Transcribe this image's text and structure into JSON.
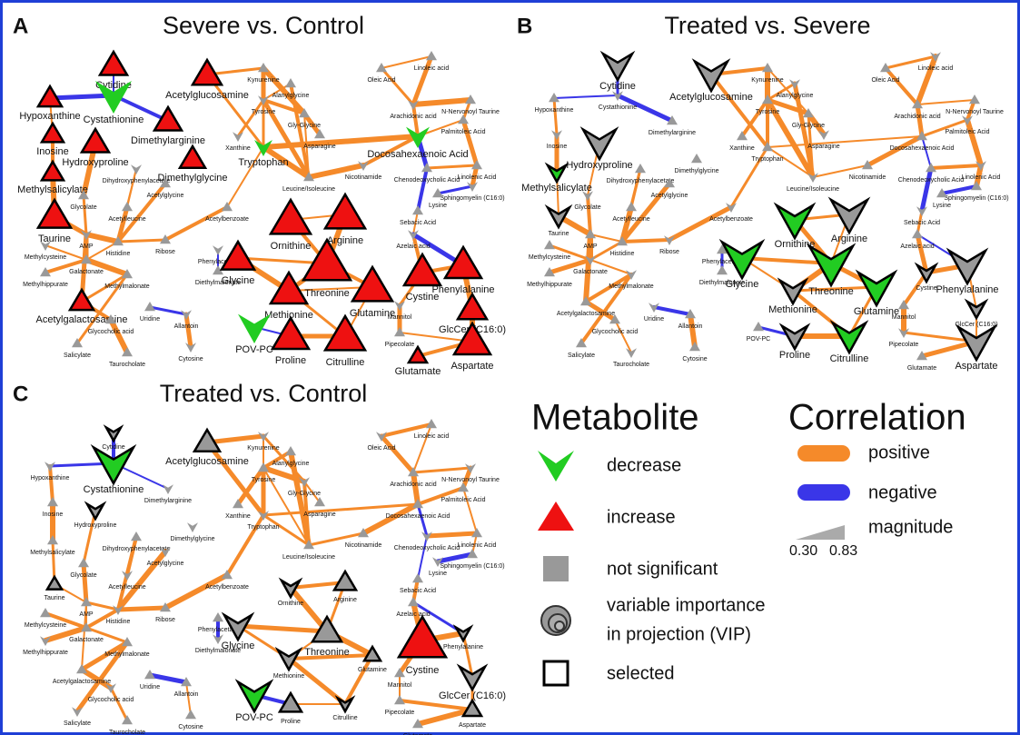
{
  "panels": [
    {
      "letter": "A",
      "title": "Severe vs. Control"
    },
    {
      "letter": "B",
      "title": "Treated vs. Severe"
    },
    {
      "letter": "C",
      "title": "Treated vs. Control"
    }
  ],
  "nodes": [
    "Cytidine",
    "Hypoxanthine",
    "Cystathionine",
    "Acetylglucosamine",
    "Dimethylarginine",
    "Inosine",
    "Hydroxyproline",
    "Dimethylglycine",
    "Methylsalicylate",
    "Taurine",
    "Kynurenine",
    "Alanylglycine",
    "Tyrosine",
    "Gly-Glycine",
    "Asparagine",
    "Xanthine",
    "Tryptophan",
    "Leucine/Isoleucine",
    "Nicotinamide",
    "Oleic Acid",
    "Linoleic acid",
    "Arachidonic acid",
    "N-Nervonoyl Taurine",
    "Palmitoleic Acid",
    "Docosahexaenoic Acid",
    "Chenodeoxycholic Acid",
    "Linolenic Acid",
    "Sphingomyelin (C16:0)",
    "Lysine",
    "Sebacic Acid",
    "Azelaic acid",
    "Acetylleucine",
    "Glycolate",
    "Dihydroxyphenylacetate",
    "Acetylglycine",
    "Acetylbenzoate",
    "AMP",
    "Histidine",
    "Ribose",
    "Phenylacetate",
    "Diethylmalonate",
    "Galactonate",
    "Methylcysteine",
    "Methylhippurate",
    "Methylmalonate",
    "Acetylgalactosamine",
    "Glycocholic acid",
    "Uridine",
    "Allantoin",
    "Salicylate",
    "Taurocholate",
    "Cytosine",
    "Ornithine",
    "Arginine",
    "Glycine",
    "Threonine",
    "Methionine",
    "Glutamine",
    "POV-PC",
    "Proline",
    "Citrulline",
    "Cystine",
    "Phenylalanine",
    "Mannitol",
    "GlcCer (C16:0)",
    "Pipecolate",
    "Glutamate",
    "Aspartate"
  ],
  "legend": {
    "metabolite": {
      "title": "Metabolite",
      "items": [
        "decrease",
        "increase",
        "not significant",
        [
          "variable importance",
          "in projection (VIP)"
        ],
        "selected"
      ]
    },
    "correlation": {
      "title": "Correlation",
      "items": [
        "positive",
        "negative",
        "magnitude"
      ],
      "scale": [
        "0.30",
        "0.83"
      ]
    }
  }
}
